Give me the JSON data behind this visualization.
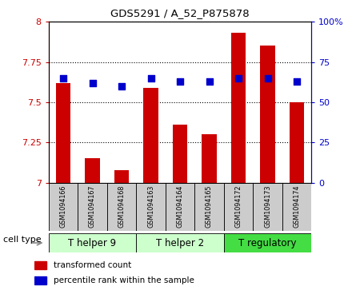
{
  "title": "GDS5291 / A_52_P875878",
  "samples": [
    "GSM1094166",
    "GSM1094167",
    "GSM1094168",
    "GSM1094163",
    "GSM1094164",
    "GSM1094165",
    "GSM1094172",
    "GSM1094173",
    "GSM1094174"
  ],
  "transformed_counts": [
    7.62,
    7.15,
    7.08,
    7.59,
    7.36,
    7.3,
    7.93,
    7.85,
    7.5
  ],
  "percentile_ranks": [
    65,
    62,
    60,
    65,
    63,
    63,
    65,
    65,
    63
  ],
  "ylim_left": [
    7.0,
    8.0
  ],
  "ylim_right": [
    0,
    100
  ],
  "yticks_left": [
    7.0,
    7.25,
    7.5,
    7.75,
    8.0
  ],
  "yticks_right": [
    0,
    25,
    50,
    75,
    100
  ],
  "ytick_labels_left": [
    "7",
    "7.25",
    "7.5",
    "7.75",
    "8"
  ],
  "ytick_labels_right": [
    "0",
    "25",
    "50",
    "75",
    "100%"
  ],
  "cell_type_groups": [
    {
      "label": "T helper 9",
      "start": 0,
      "end": 2,
      "color": "#ccffcc"
    },
    {
      "label": "T helper 2",
      "start": 3,
      "end": 5,
      "color": "#ccffcc"
    },
    {
      "label": "T regulatory",
      "start": 6,
      "end": 8,
      "color": "#44dd44"
    }
  ],
  "bar_color": "#cc0000",
  "dot_color": "#0000cc",
  "bar_width": 0.5,
  "dot_size": 40,
  "sample_box_color": "#cccccc",
  "left_axis_color": "#cc0000",
  "right_axis_color": "#0000cc",
  "legend_items": [
    "transformed count",
    "percentile rank within the sample"
  ],
  "cell_type_label": "cell type",
  "grid_yticks": [
    7.25,
    7.5,
    7.75
  ],
  "n_samples": 9
}
